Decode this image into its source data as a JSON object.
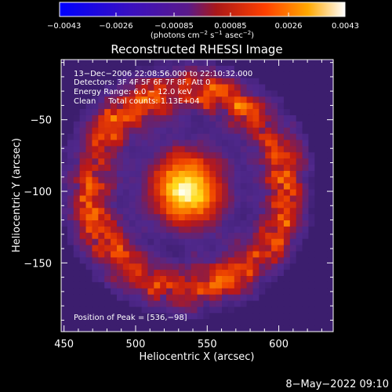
{
  "chart_data": {
    "type": "heatmap",
    "title": "Reconstructed RHESSI Image",
    "xlabel": "Heliocentric X (arcsec)",
    "ylabel": "Heliocentric Y (arcsec)",
    "xlim": [
      448,
      638
    ],
    "ylim": [
      -198,
      -8
    ],
    "x_ticks": [
      {
        "value": 450,
        "label": "450"
      },
      {
        "value": 500,
        "label": "500"
      },
      {
        "value": 550,
        "label": "550"
      },
      {
        "value": 600,
        "label": "600"
      }
    ],
    "y_ticks": [
      {
        "value": -50,
        "label": "−50"
      },
      {
        "value": -100,
        "label": "−100"
      },
      {
        "value": -150,
        "label": "−150"
      }
    ],
    "colorbar": {
      "range": [
        -0.0043,
        0.0043
      ],
      "ticks": [
        {
          "value": -0.0043,
          "label": "−0.0043"
        },
        {
          "value": -0.0026,
          "label": "−0.0026"
        },
        {
          "value": -0.00085,
          "label": "−0.00085"
        },
        {
          "value": 0.00085,
          "label": "0.00085"
        },
        {
          "value": 0.0026,
          "label": "0.0026"
        },
        {
          "value": 0.0043,
          "label": "0.0043"
        }
      ],
      "unit_parts": [
        "(photons cm",
        "−2",
        " s",
        "−1",
        " asec",
        "−2",
        ")"
      ],
      "colormap": "rhessi (blue-purple-red-orange-yellow-white)"
    },
    "peak": {
      "x": 536,
      "y": -98,
      "value": 0.0043
    },
    "annotations": [
      "13−Dec−2006 22:08:56.000 to 22:10:32.000",
      "Detectors: 3F 4F 5F 6F 7F 8F, Att 0",
      "Energy Range: 6.0 − 12.0 keV",
      "Clean     Total counts: 1.13E+04",
      "Position of Peak = [536,−98]"
    ]
  },
  "footer": {
    "date": "8−May−2022 09:10"
  },
  "colors": {
    "background": "#000000",
    "axes": "#ffffff",
    "text": "#ffffff",
    "background_map": "#4a2579",
    "peak": "#fffde0"
  }
}
